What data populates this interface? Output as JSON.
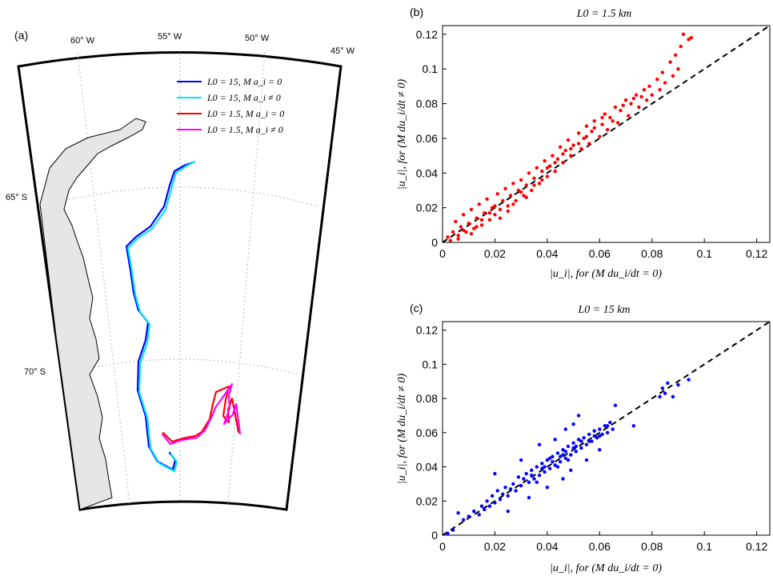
{
  "panel_a": {
    "tag": "(a)",
    "lon_labels": [
      "60° W",
      "55° W",
      "50° W",
      "45° W"
    ],
    "lat_labels": [
      "65° S",
      "70° S"
    ],
    "legend": [
      {
        "label": "L0 = 15, M a_i = 0",
        "color": "#0000ff"
      },
      {
        "label": "L0 = 15, M a_i ≠ 0",
        "color": "#00e5ff"
      },
      {
        "label": "L0 = 1.5, M a_i = 0",
        "color": "#ff0000"
      },
      {
        "label": "L0 = 1.5, M a_i ≠ 0",
        "color": "#ff00ff"
      }
    ],
    "land_color": "#e6e6e6"
  },
  "panel_b": {
    "tag": "(b)",
    "title": "L0 = 1.5 km",
    "xlabel": "|u_i|, for (M du_i/dt = 0)",
    "ylabel": "|u_i|, for (M du_i/dt ≠ 0)",
    "ticks": [
      "0",
      "0.02",
      "0.04",
      "0.06",
      "0.08",
      "0.1",
      "0.12"
    ]
  },
  "panel_c": {
    "tag": "(c)",
    "title": "L0 = 15 km",
    "xlabel": "|u_i|, for (M du_i/dt = 0)",
    "ylabel": "|u_i|, for (M du_i/dt ≠ 0)",
    "ticks": [
      "0",
      "0.02",
      "0.04",
      "0.06",
      "0.08",
      "0.1",
      "0.12"
    ]
  },
  "chart_data": [
    {
      "type": "scatter",
      "title": "L0 = 1.5 km",
      "xlabel": "|u_i|, for (M du_i/dt = 0)",
      "ylabel": "|u_i|, for (M du_i/dt ≠ 0)",
      "xlim": [
        0,
        0.125
      ],
      "ylim": [
        0,
        0.125
      ],
      "marker_color": "#ff0000",
      "reference_line": {
        "style": "dashed",
        "color": "#000000",
        "slope": 1
      },
      "series": [
        {
          "points": [
            [
              0.002,
              0.003
            ],
            [
              0.004,
              0.006
            ],
            [
              0.005,
              0.012
            ],
            [
              0.006,
              0.004
            ],
            [
              0.007,
              0.009
            ],
            [
              0.008,
              0.016
            ],
            [
              0.009,
              0.006
            ],
            [
              0.01,
              0.011
            ],
            [
              0.011,
              0.019
            ],
            [
              0.012,
              0.008
            ],
            [
              0.013,
              0.014
            ],
            [
              0.014,
              0.022
            ],
            [
              0.015,
              0.01
            ],
            [
              0.016,
              0.017
            ],
            [
              0.017,
              0.025
            ],
            [
              0.018,
              0.013
            ],
            [
              0.019,
              0.02
            ],
            [
              0.02,
              0.016
            ],
            [
              0.021,
              0.028
            ],
            [
              0.022,
              0.019
            ],
            [
              0.023,
              0.024
            ],
            [
              0.024,
              0.031
            ],
            [
              0.025,
              0.021
            ],
            [
              0.026,
              0.027
            ],
            [
              0.027,
              0.034
            ],
            [
              0.028,
              0.024
            ],
            [
              0.029,
              0.03
            ],
            [
              0.03,
              0.036
            ],
            [
              0.031,
              0.027
            ],
            [
              0.032,
              0.033
            ],
            [
              0.033,
              0.04
            ],
            [
              0.034,
              0.03
            ],
            [
              0.035,
              0.037
            ],
            [
              0.036,
              0.043
            ],
            [
              0.037,
              0.034
            ],
            [
              0.038,
              0.041
            ],
            [
              0.039,
              0.047
            ],
            [
              0.04,
              0.038
            ],
            [
              0.041,
              0.044
            ],
            [
              0.042,
              0.05
            ],
            [
              0.043,
              0.041
            ],
            [
              0.044,
              0.048
            ],
            [
              0.045,
              0.055
            ],
            [
              0.046,
              0.046
            ],
            [
              0.047,
              0.053
            ],
            [
              0.048,
              0.059
            ],
            [
              0.049,
              0.05
            ],
            [
              0.05,
              0.056
            ],
            [
              0.052,
              0.063
            ],
            [
              0.053,
              0.054
            ],
            [
              0.054,
              0.06
            ],
            [
              0.055,
              0.067
            ],
            [
              0.056,
              0.057
            ],
            [
              0.057,
              0.064
            ],
            [
              0.058,
              0.07
            ],
            [
              0.06,
              0.061
            ],
            [
              0.061,
              0.068
            ],
            [
              0.062,
              0.074
            ],
            [
              0.063,
              0.065
            ],
            [
              0.064,
              0.072
            ],
            [
              0.066,
              0.078
            ],
            [
              0.067,
              0.069
            ],
            [
              0.068,
              0.076
            ],
            [
              0.07,
              0.082
            ],
            [
              0.071,
              0.073
            ],
            [
              0.072,
              0.08
            ],
            [
              0.074,
              0.085
            ],
            [
              0.075,
              0.078
            ],
            [
              0.076,
              0.084
            ],
            [
              0.078,
              0.082
            ],
            [
              0.079,
              0.09
            ],
            [
              0.08,
              0.085
            ],
            [
              0.082,
              0.094
            ],
            [
              0.083,
              0.088
            ],
            [
              0.084,
              0.098
            ],
            [
              0.085,
              0.092
            ],
            [
              0.087,
              0.104
            ],
            [
              0.088,
              0.096
            ],
            [
              0.089,
              0.108
            ],
            [
              0.09,
              0.1
            ],
            [
              0.091,
              0.113
            ],
            [
              0.092,
              0.12
            ],
            [
              0.094,
              0.117
            ],
            [
              0.095,
              0.118
            ],
            [
              0.003,
              0.001
            ],
            [
              0.006,
              0.002
            ],
            [
              0.008,
              0.007
            ],
            [
              0.011,
              0.005
            ],
            [
              0.013,
              0.009
            ],
            [
              0.015,
              0.013
            ],
            [
              0.018,
              0.017
            ],
            [
              0.02,
              0.021
            ],
            [
              0.022,
              0.014
            ],
            [
              0.025,
              0.018
            ],
            [
              0.027,
              0.022
            ],
            [
              0.03,
              0.029
            ],
            [
              0.032,
              0.026
            ],
            [
              0.035,
              0.033
            ],
            [
              0.038,
              0.036
            ],
            [
              0.04,
              0.043
            ],
            [
              0.043,
              0.046
            ],
            [
              0.046,
              0.051
            ],
            [
              0.049,
              0.054
            ],
            [
              0.052,
              0.057
            ],
            [
              0.055,
              0.061
            ],
            [
              0.058,
              0.066
            ],
            [
              0.061,
              0.072
            ],
            [
              0.065,
              0.07
            ],
            [
              0.069,
              0.079
            ],
            [
              0.073,
              0.083
            ],
            [
              0.077,
              0.088
            ]
          ]
        }
      ]
    },
    {
      "type": "scatter",
      "title": "L0 = 15 km",
      "xlabel": "|u_i|, for (M du_i/dt = 0)",
      "ylabel": "|u_i|, for (M du_i/dt ≠ 0)",
      "xlim": [
        0,
        0.125
      ],
      "ylim": [
        0,
        0.125
      ],
      "marker_color": "#0000ff",
      "reference_line": {
        "style": "dashed",
        "color": "#000000",
        "slope": 1
      },
      "series": [
        {
          "points": [
            [
              0.002,
              0.001
            ],
            [
              0.004,
              0.003
            ],
            [
              0.006,
              0.013
            ],
            [
              0.008,
              0.009
            ],
            [
              0.01,
              0.011
            ],
            [
              0.012,
              0.014
            ],
            [
              0.014,
              0.012
            ],
            [
              0.015,
              0.017
            ],
            [
              0.016,
              0.015
            ],
            [
              0.017,
              0.02
            ],
            [
              0.018,
              0.017
            ],
            [
              0.019,
              0.023
            ],
            [
              0.02,
              0.019
            ],
            [
              0.021,
              0.026
            ],
            [
              0.022,
              0.021
            ],
            [
              0.023,
              0.024
            ],
            [
              0.024,
              0.028
            ],
            [
              0.025,
              0.023
            ],
            [
              0.026,
              0.027
            ],
            [
              0.027,
              0.03
            ],
            [
              0.028,
              0.026
            ],
            [
              0.029,
              0.034
            ],
            [
              0.03,
              0.029
            ],
            [
              0.031,
              0.033
            ],
            [
              0.032,
              0.036
            ],
            [
              0.033,
              0.031
            ],
            [
              0.034,
              0.038
            ],
            [
              0.035,
              0.033
            ],
            [
              0.036,
              0.04
            ],
            [
              0.037,
              0.035
            ],
            [
              0.038,
              0.042
            ],
            [
              0.039,
              0.037
            ],
            [
              0.04,
              0.044
            ],
            [
              0.041,
              0.039
            ],
            [
              0.042,
              0.046
            ],
            [
              0.043,
              0.041
            ],
            [
              0.044,
              0.048
            ],
            [
              0.045,
              0.043
            ],
            [
              0.046,
              0.05
            ],
            [
              0.047,
              0.045
            ],
            [
              0.048,
              0.052
            ],
            [
              0.049,
              0.047
            ],
            [
              0.05,
              0.054
            ],
            [
              0.051,
              0.049
            ],
            [
              0.052,
              0.056
            ],
            [
              0.053,
              0.051
            ],
            [
              0.054,
              0.057
            ],
            [
              0.055,
              0.053
            ],
            [
              0.056,
              0.059
            ],
            [
              0.057,
              0.055
            ],
            [
              0.058,
              0.061
            ],
            [
              0.059,
              0.057
            ],
            [
              0.06,
              0.062
            ],
            [
              0.061,
              0.059
            ],
            [
              0.062,
              0.064
            ],
            [
              0.063,
              0.06
            ],
            [
              0.064,
              0.066
            ],
            [
              0.065,
              0.062
            ],
            [
              0.066,
              0.076
            ],
            [
              0.073,
              0.064
            ],
            [
              0.083,
              0.081
            ],
            [
              0.084,
              0.086
            ],
            [
              0.085,
              0.083
            ],
            [
              0.086,
              0.089
            ],
            [
              0.088,
              0.081
            ],
            [
              0.09,
              0.088
            ],
            [
              0.094,
              0.091
            ],
            [
              0.02,
              0.036
            ],
            [
              0.03,
              0.044
            ],
            [
              0.037,
              0.053
            ],
            [
              0.043,
              0.056
            ],
            [
              0.047,
              0.062
            ],
            [
              0.05,
              0.065
            ],
            [
              0.052,
              0.07
            ],
            [
              0.025,
              0.014
            ],
            [
              0.033,
              0.022
            ],
            [
              0.04,
              0.028
            ],
            [
              0.046,
              0.033
            ],
            [
              0.049,
              0.038
            ],
            [
              0.055,
              0.044
            ],
            [
              0.06,
              0.05
            ],
            [
              0.038,
              0.039
            ],
            [
              0.042,
              0.043
            ],
            [
              0.044,
              0.04
            ],
            [
              0.046,
              0.047
            ],
            [
              0.048,
              0.044
            ],
            [
              0.05,
              0.051
            ],
            [
              0.034,
              0.035
            ],
            [
              0.036,
              0.031
            ],
            [
              0.039,
              0.04
            ],
            [
              0.041,
              0.045
            ],
            [
              0.045,
              0.046
            ],
            [
              0.047,
              0.049
            ],
            [
              0.051,
              0.052
            ],
            [
              0.053,
              0.055
            ],
            [
              0.056,
              0.055
            ],
            [
              0.058,
              0.058
            ],
            [
              0.06,
              0.058
            ],
            [
              0.063,
              0.064
            ]
          ]
        }
      ]
    }
  ]
}
